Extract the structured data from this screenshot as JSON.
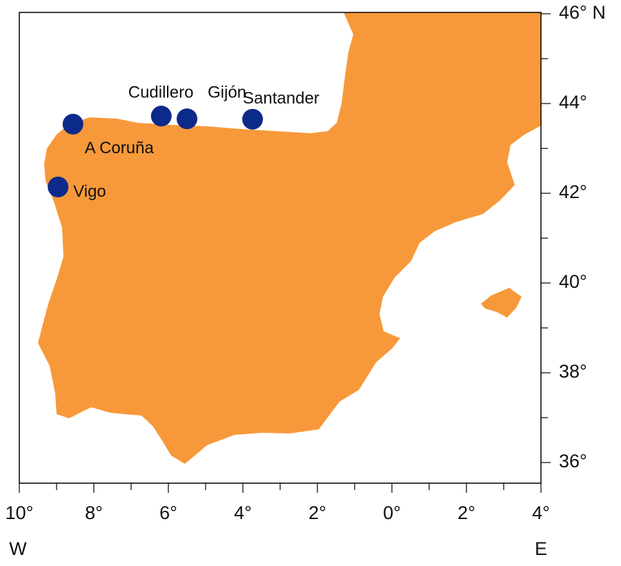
{
  "chart_data": {
    "type": "scatter",
    "x": [
      -8.56,
      -8.96,
      -6.19,
      -5.5,
      -3.74
    ],
    "y": [
      43.54,
      42.14,
      43.72,
      43.66,
      43.65
    ],
    "point_labels": [
      "A Coruña",
      "Vigo",
      "Cudillero",
      "Gijón",
      "Santander"
    ],
    "color": "#0c2a8a",
    "land_color": "#f7993a",
    "xlim": [
      -10,
      4
    ],
    "ylim": [
      35.54,
      46.03
    ],
    "xticks": [
      {
        "value": -10,
        "label": "10°"
      },
      {
        "value": -8,
        "label": "8°"
      },
      {
        "value": -6,
        "label": "6°"
      },
      {
        "value": -4,
        "label": "4°"
      },
      {
        "value": -2,
        "label": "2°"
      },
      {
        "value": 0,
        "label": "0°"
      },
      {
        "value": 2,
        "label": "2°"
      },
      {
        "value": 4,
        "label": "4°"
      }
    ],
    "xminorticks": [
      -9,
      -7,
      -5,
      -3,
      -1,
      1,
      3
    ],
    "yticks": [
      {
        "value": 36,
        "label": "36°"
      },
      {
        "value": 38,
        "label": "38°"
      },
      {
        "value": 40,
        "label": "40°"
      },
      {
        "value": 42,
        "label": "42°"
      },
      {
        "value": 44,
        "label": "44°"
      },
      {
        "value": 46,
        "label": "46° N"
      }
    ],
    "yminorticks": [
      37,
      39,
      41,
      43,
      45
    ],
    "x_hemisphere_labels": [
      "W",
      "E"
    ]
  }
}
